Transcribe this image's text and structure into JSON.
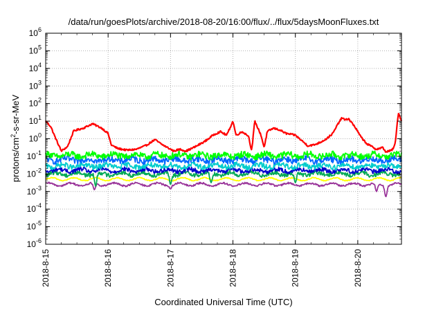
{
  "chart_data": {
    "type": "line",
    "title": "/data/run/goesPlots/archive/2018-08-20/16:00/flux/../flux/5daysMoonFluxes.txt",
    "xlabel": "Coordinated Universal Time (UTC)",
    "ylabel": {
      "prefix": "protons/cm",
      "sup": "2",
      "suffix": "-s-sr-MeV"
    },
    "yscale": "log",
    "ylim_exp": [
      -6,
      6
    ],
    "y_ticks": [
      {
        "base": "10",
        "exp": "-6"
      },
      {
        "base": "10",
        "exp": "-5"
      },
      {
        "base": "10",
        "exp": "-4"
      },
      {
        "base": "10",
        "exp": "-3"
      },
      {
        "base": "10",
        "exp": "-2"
      },
      {
        "base": "10",
        "exp": "-1"
      },
      {
        "base": "10",
        "exp": "0"
      },
      {
        "base": "10",
        "exp": "1"
      },
      {
        "base": "10",
        "exp": "2"
      },
      {
        "base": "10",
        "exp": "3"
      },
      {
        "base": "10",
        "exp": "4"
      },
      {
        "base": "10",
        "exp": "5"
      },
      {
        "base": "10",
        "exp": "6"
      }
    ],
    "x_range_days": [
      0,
      5.7
    ],
    "x_ticks": [
      {
        "day": 0,
        "label": "2018-8-15"
      },
      {
        "day": 1,
        "label": "2018-8-16"
      },
      {
        "day": 2,
        "label": "2018-8-17"
      },
      {
        "day": 3,
        "label": "2018-8-18"
      },
      {
        "day": 4,
        "label": "2018-8-19"
      },
      {
        "day": 5,
        "label": "2018-8-20"
      }
    ],
    "grid": true,
    "series": [
      {
        "color": "#ff0000",
        "pattern": "smooth",
        "noise_amp": 0.05,
        "points": [
          [
            0,
            1.0
          ],
          [
            0.08,
            0.7
          ],
          [
            0.15,
            0.1
          ],
          [
            0.25,
            -0.7
          ],
          [
            0.35,
            -0.45
          ],
          [
            0.45,
            0.45
          ],
          [
            0.6,
            0.6
          ],
          [
            0.75,
            0.85
          ],
          [
            0.9,
            0.6
          ],
          [
            1.0,
            0.3
          ],
          [
            1.05,
            -0.35
          ],
          [
            1.15,
            -0.55
          ],
          [
            1.3,
            -0.65
          ],
          [
            1.45,
            -0.6
          ],
          [
            1.6,
            -0.4
          ],
          [
            1.75,
            -0.05
          ],
          [
            1.85,
            -0.3
          ],
          [
            1.95,
            -0.5
          ],
          [
            2.05,
            -0.7
          ],
          [
            2.15,
            -0.6
          ],
          [
            2.25,
            -0.7
          ],
          [
            2.4,
            -0.45
          ],
          [
            2.55,
            -0.15
          ],
          [
            2.7,
            0.25
          ],
          [
            2.8,
            0.4
          ],
          [
            2.9,
            0.2
          ],
          [
            2.95,
            0.6
          ],
          [
            3.0,
            1.0
          ],
          [
            3.05,
            0.2
          ],
          [
            3.15,
            0.4
          ],
          [
            3.25,
            0.15
          ],
          [
            3.3,
            -0.7
          ],
          [
            3.35,
            1.0
          ],
          [
            3.45,
            0.2
          ],
          [
            3.5,
            -0.5
          ],
          [
            3.55,
            0.4
          ],
          [
            3.65,
            0.6
          ],
          [
            3.75,
            0.5
          ],
          [
            3.85,
            0.3
          ],
          [
            4.0,
            0.2
          ],
          [
            4.1,
            -0.1
          ],
          [
            4.2,
            -0.4
          ],
          [
            4.3,
            -0.35
          ],
          [
            4.4,
            -0.2
          ],
          [
            4.5,
            0.0
          ],
          [
            4.6,
            0.3
          ],
          [
            4.7,
            0.95
          ],
          [
            4.75,
            1.2
          ],
          [
            4.8,
            1.05
          ],
          [
            4.85,
            1.15
          ],
          [
            4.95,
            0.7
          ],
          [
            5.05,
            0.1
          ],
          [
            5.15,
            -0.3
          ],
          [
            5.3,
            -0.6
          ],
          [
            5.4,
            -0.5
          ],
          [
            5.45,
            -0.75
          ],
          [
            5.55,
            -0.65
          ],
          [
            5.6,
            -0.3
          ],
          [
            5.65,
            1.5
          ],
          [
            5.7,
            1.0
          ]
        ]
      },
      {
        "color": "#00ff00",
        "pattern": "noisy",
        "level": -0.95,
        "noise_amp": 0.18,
        "dips": []
      },
      {
        "color": "#0066ff",
        "pattern": "noisy",
        "level": -1.2,
        "noise_amp": 0.18,
        "dips": []
      },
      {
        "color": "#00cccc",
        "pattern": "noisy",
        "level": -1.55,
        "noise_amp": 0.15,
        "dips": []
      },
      {
        "color": "#0000cc",
        "pattern": "noisy",
        "level": -1.8,
        "noise_amp": 0.12,
        "dips": []
      },
      {
        "color": "#00aa55",
        "pattern": "noisy",
        "level": -2.0,
        "noise_amp": 0.12,
        "dips": [
          [
            0.8,
            -2.7
          ],
          [
            2.0,
            -2.6
          ],
          [
            2.65,
            -2.5
          ],
          [
            4.0,
            -2.5
          ]
        ]
      },
      {
        "color": "#ffff00",
        "pattern": "noisy",
        "level": -2.3,
        "noise_amp": 0.03,
        "dips": []
      },
      {
        "color": "#993399",
        "pattern": "noisy",
        "level": -2.6,
        "noise_amp": 0.05,
        "dips": [
          [
            0.78,
            -2.9
          ],
          [
            2.0,
            -2.85
          ],
          [
            3.0,
            -2.7
          ],
          [
            5.3,
            -3.0
          ],
          [
            5.45,
            -3.3
          ]
        ]
      }
    ]
  }
}
